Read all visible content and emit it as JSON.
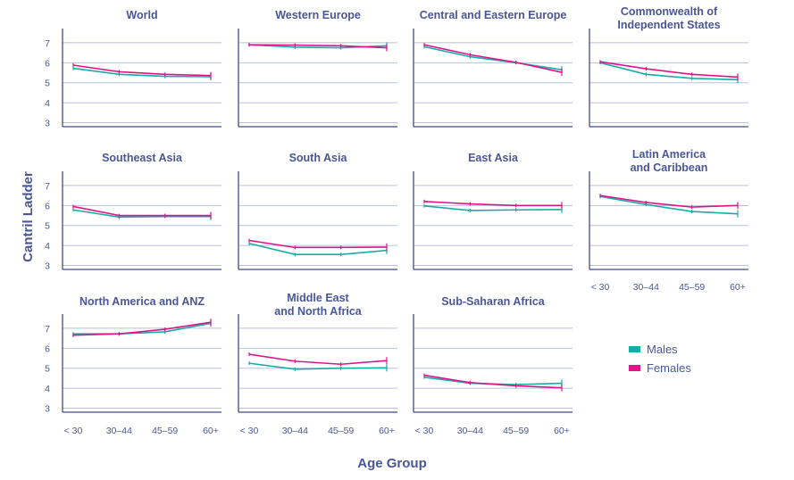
{
  "figure": {
    "ylabel": "Cantril Ladder",
    "xlabel": "Age Group",
    "legend": [
      {
        "label": "Males",
        "color": "#1aaba6"
      },
      {
        "label": "Females",
        "color": "#e0148a"
      }
    ],
    "axis_color": "#3d4a8c",
    "grid_color": "#b9c0dd",
    "text_color": "#4a5698"
  },
  "chart_data": [
    {
      "type": "line",
      "title": "World",
      "categories": [
        "< 30",
        "30–44",
        "45–59",
        "60+"
      ],
      "ylim": [
        2.8,
        7.8
      ],
      "yticks": [
        3,
        4,
        5,
        6,
        7
      ],
      "show_yticks": true,
      "show_xticks": false,
      "series": [
        {
          "name": "Males",
          "values": [
            5.72,
            5.42,
            5.32,
            5.3
          ]
        },
        {
          "name": "Females",
          "values": [
            5.88,
            5.55,
            5.42,
            5.36
          ]
        }
      ]
    },
    {
      "type": "line",
      "title": "Western Europe",
      "categories": [
        "< 30",
        "30–44",
        "45–59",
        "60+"
      ],
      "ylim": [
        2.8,
        7.8
      ],
      "yticks": [
        3,
        4,
        5,
        6,
        7
      ],
      "show_yticks": false,
      "show_xticks": false,
      "series": [
        {
          "name": "Males",
          "values": [
            6.9,
            6.78,
            6.75,
            6.85
          ]
        },
        {
          "name": "Females",
          "values": [
            6.9,
            6.88,
            6.85,
            6.75
          ]
        }
      ]
    },
    {
      "type": "line",
      "title": "Central and Eastern Europe",
      "categories": [
        "< 30",
        "30–44",
        "45–59",
        "60+"
      ],
      "ylim": [
        2.8,
        7.8
      ],
      "yticks": [
        3,
        4,
        5,
        6,
        7
      ],
      "show_yticks": false,
      "show_xticks": false,
      "series": [
        {
          "name": "Males",
          "values": [
            6.8,
            6.3,
            6.0,
            5.65
          ]
        },
        {
          "name": "Females",
          "values": [
            6.9,
            6.4,
            6.02,
            5.52
          ]
        }
      ]
    },
    {
      "type": "line",
      "title": "Commonwealth of Independent States",
      "categories": [
        "< 30",
        "30–44",
        "45–59",
        "60+"
      ],
      "ylim": [
        2.8,
        7.8
      ],
      "yticks": [
        3,
        4,
        5,
        6,
        7
      ],
      "show_yticks": false,
      "show_xticks": false,
      "series": [
        {
          "name": "Males",
          "values": [
            6.0,
            5.42,
            5.22,
            5.15
          ]
        },
        {
          "name": "Females",
          "values": [
            6.05,
            5.7,
            5.42,
            5.28
          ]
        }
      ]
    },
    {
      "type": "line",
      "title": "Southeast Asia",
      "categories": [
        "< 30",
        "30–44",
        "45–59",
        "60+"
      ],
      "ylim": [
        2.8,
        7.8
      ],
      "yticks": [
        3,
        4,
        5,
        6,
        7
      ],
      "show_yticks": true,
      "show_xticks": false,
      "series": [
        {
          "name": "Males",
          "values": [
            5.78,
            5.42,
            5.45,
            5.45
          ]
        },
        {
          "name": "Females",
          "values": [
            5.95,
            5.5,
            5.5,
            5.5
          ]
        }
      ]
    },
    {
      "type": "line",
      "title": "South Asia",
      "categories": [
        "< 30",
        "30–44",
        "45–59",
        "60+"
      ],
      "ylim": [
        2.8,
        7.8
      ],
      "yticks": [
        3,
        4,
        5,
        6,
        7
      ],
      "show_yticks": false,
      "show_xticks": false,
      "series": [
        {
          "name": "Males",
          "values": [
            4.1,
            3.55,
            3.55,
            3.75
          ]
        },
        {
          "name": "Females",
          "values": [
            4.25,
            3.9,
            3.9,
            3.92
          ]
        }
      ]
    },
    {
      "type": "line",
      "title": "East Asia",
      "categories": [
        "< 30",
        "30–44",
        "45–59",
        "60+"
      ],
      "ylim": [
        2.8,
        7.8
      ],
      "yticks": [
        3,
        4,
        5,
        6,
        7
      ],
      "show_yticks": false,
      "show_xticks": false,
      "series": [
        {
          "name": "Males",
          "values": [
            5.98,
            5.75,
            5.78,
            5.8
          ]
        },
        {
          "name": "Females",
          "values": [
            6.2,
            6.08,
            6.0,
            6.0
          ]
        }
      ]
    },
    {
      "type": "line",
      "title": "Latin America and Caribbean",
      "categories": [
        "< 30",
        "30–44",
        "45–59",
        "60+"
      ],
      "ylim": [
        2.8,
        7.8
      ],
      "yticks": [
        3,
        4,
        5,
        6,
        7
      ],
      "show_yticks": false,
      "show_xticks": true,
      "series": [
        {
          "name": "Males",
          "values": [
            6.45,
            6.05,
            5.7,
            5.58
          ]
        },
        {
          "name": "Females",
          "values": [
            6.5,
            6.15,
            5.92,
            6.0
          ]
        }
      ]
    },
    {
      "type": "line",
      "title": "North America and ANZ",
      "categories": [
        "< 30",
        "30–44",
        "45–59",
        "60+"
      ],
      "ylim": [
        2.8,
        7.8
      ],
      "yticks": [
        3,
        4,
        5,
        6,
        7
      ],
      "show_yticks": true,
      "show_xticks": true,
      "series": [
        {
          "name": "Males",
          "values": [
            6.72,
            6.72,
            6.82,
            7.25
          ]
        },
        {
          "name": "Females",
          "values": [
            6.65,
            6.72,
            6.95,
            7.3
          ]
        }
      ]
    },
    {
      "type": "line",
      "title": "Middle East and North Africa",
      "categories": [
        "< 30",
        "30–44",
        "45–59",
        "60+"
      ],
      "ylim": [
        2.8,
        7.8
      ],
      "yticks": [
        3,
        4,
        5,
        6,
        7
      ],
      "show_yticks": false,
      "show_xticks": true,
      "series": [
        {
          "name": "Males",
          "values": [
            5.25,
            4.95,
            5.0,
            5.02
          ]
        },
        {
          "name": "Females",
          "values": [
            5.7,
            5.35,
            5.2,
            5.38
          ]
        }
      ]
    },
    {
      "type": "line",
      "title": "Sub-Saharan Africa",
      "categories": [
        "< 30",
        "30–44",
        "45–59",
        "60+"
      ],
      "ylim": [
        2.8,
        7.8
      ],
      "yticks": [
        3,
        4,
        5,
        6,
        7
      ],
      "show_yticks": false,
      "show_xticks": true,
      "series": [
        {
          "name": "Males",
          "values": [
            4.55,
            4.25,
            4.18,
            4.25
          ]
        },
        {
          "name": "Females",
          "values": [
            4.65,
            4.28,
            4.12,
            4.02
          ]
        }
      ]
    }
  ]
}
